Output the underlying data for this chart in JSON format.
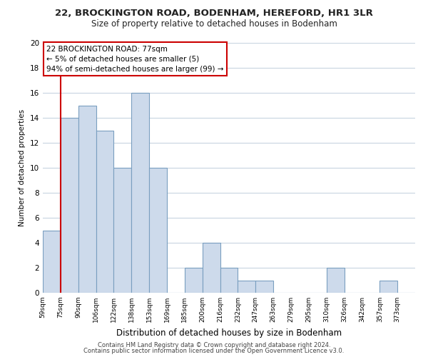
{
  "title": "22, BROCKINGTON ROAD, BODENHAM, HEREFORD, HR1 3LR",
  "subtitle": "Size of property relative to detached houses in Bodenham",
  "xlabel": "Distribution of detached houses by size in Bodenham",
  "ylabel": "Number of detached properties",
  "bar_color": "#cddaeb",
  "bar_edge_color": "#7a9fc0",
  "bins": [
    "59sqm",
    "75sqm",
    "90sqm",
    "106sqm",
    "122sqm",
    "138sqm",
    "153sqm",
    "169sqm",
    "185sqm",
    "200sqm",
    "216sqm",
    "232sqm",
    "247sqm",
    "263sqm",
    "279sqm",
    "295sqm",
    "310sqm",
    "326sqm",
    "342sqm",
    "357sqm",
    "373sqm"
  ],
  "heights": [
    5,
    14,
    15,
    13,
    10,
    16,
    10,
    0,
    2,
    4,
    2,
    1,
    1,
    0,
    0,
    0,
    2,
    0,
    0,
    1,
    0
  ],
  "vline_x": 1,
  "vline_color": "#cc0000",
  "annotation_line1": "22 BROCKINGTON ROAD: 77sqm",
  "annotation_line2": "← 5% of detached houses are smaller (5)",
  "annotation_line3": "94% of semi-detached houses are larger (99) →",
  "ylim": [
    0,
    20
  ],
  "yticks": [
    0,
    2,
    4,
    6,
    8,
    10,
    12,
    14,
    16,
    18,
    20
  ],
  "footer1": "Contains HM Land Registry data © Crown copyright and database right 2024.",
  "footer2": "Contains public sector information licensed under the Open Government Licence v3.0.",
  "background_color": "#ffffff",
  "grid_color": "#c8d4e0"
}
